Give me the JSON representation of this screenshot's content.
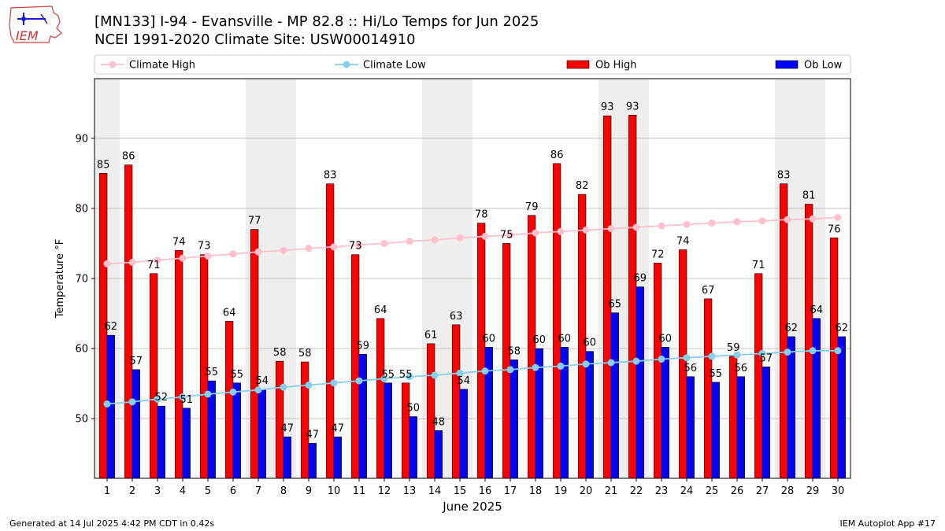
{
  "header": {
    "title_line1": "[MN133] I-94 - Evansville - MP 82.8  :: Hi/Lo Temps for Jun 2025",
    "title_line2": "NCEI 1991-2020 Climate Site: USW00014910",
    "logo_text": "IEM"
  },
  "footer": {
    "generated": "Generated at 14 Jul 2025 4:42 PM CDT in 0.42s",
    "app": "IEM Autoplot App #17"
  },
  "colors": {
    "ob_high": "#ff0000",
    "ob_low": "#0000ff",
    "climate_high": "#ffc0cb",
    "climate_low": "#87ceeb",
    "weekend_band": "#eeeeee",
    "grid": "#b0b0b0"
  },
  "chart_data": {
    "type": "bar",
    "title": "[MN133] I-94 - Evansville - MP 82.8  :: Hi/Lo Temps for Jun 2025",
    "xlabel": "June 2025",
    "ylabel": "Temperature °F",
    "ylim": [
      41.5,
      98.5
    ],
    "yticks": [
      50,
      60,
      70,
      80,
      90
    ],
    "grid": "y",
    "legend_placement": "top",
    "categories": [
      "1",
      "2",
      "3",
      "4",
      "5",
      "6",
      "7",
      "8",
      "9",
      "10",
      "11",
      "12",
      "13",
      "14",
      "15",
      "16",
      "17",
      "18",
      "19",
      "20",
      "21",
      "22",
      "23",
      "24",
      "25",
      "26",
      "27",
      "28",
      "29",
      "30"
    ],
    "shaded_days": [
      1,
      7,
      8,
      14,
      15,
      21,
      22,
      28,
      29
    ],
    "series": [
      {
        "name": "Ob High",
        "kind": "bar",
        "values": [
          85,
          86,
          71,
          74,
          73,
          64,
          77,
          58,
          58,
          83,
          73,
          64,
          55,
          61,
          63,
          78,
          75,
          79,
          86,
          82,
          93,
          93,
          72,
          74,
          67,
          59,
          71,
          83,
          81,
          76
        ],
        "plot_values": [
          85.0,
          86.2,
          70.7,
          74.0,
          73.4,
          63.9,
          77.0,
          58.2,
          58.1,
          83.5,
          73.4,
          64.3,
          55.1,
          60.7,
          63.4,
          77.9,
          75.0,
          79.0,
          86.4,
          82.0,
          93.2,
          93.3,
          72.2,
          74.1,
          67.1,
          58.9,
          70.7,
          83.5,
          80.6,
          75.8
        ]
      },
      {
        "name": "Ob Low",
        "kind": "bar",
        "values": [
          62,
          57,
          52,
          51,
          55,
          55,
          54,
          47,
          47,
          47,
          59,
          55,
          50,
          48,
          54,
          60,
          58,
          60,
          60,
          60,
          65,
          69,
          60,
          56,
          55,
          56,
          57,
          62,
          64,
          62
        ],
        "plot_values": [
          61.9,
          57.0,
          51.8,
          51.5,
          55.4,
          55.1,
          54.2,
          47.4,
          46.5,
          47.4,
          59.2,
          55.1,
          50.3,
          48.3,
          54.2,
          60.2,
          58.4,
          60.0,
          60.2,
          59.6,
          65.1,
          68.8,
          60.2,
          56.0,
          55.2,
          56.0,
          57.4,
          61.7,
          64.3,
          61.7
        ]
      },
      {
        "name": "Climate High",
        "kind": "line",
        "values": [
          72.1,
          72.3,
          72.6,
          72.9,
          73.2,
          73.5,
          73.8,
          74.0,
          74.3,
          74.5,
          74.8,
          75.0,
          75.3,
          75.5,
          75.8,
          76.0,
          76.2,
          76.5,
          76.7,
          76.9,
          77.1,
          77.3,
          77.5,
          77.7,
          77.9,
          78.1,
          78.2,
          78.4,
          78.5,
          78.7
        ]
      },
      {
        "name": "Climate Low",
        "kind": "line",
        "values": [
          52.1,
          52.4,
          52.8,
          53.1,
          53.5,
          53.8,
          54.1,
          54.5,
          54.8,
          55.1,
          55.4,
          55.7,
          56.0,
          56.2,
          56.5,
          56.8,
          57.0,
          57.3,
          57.5,
          57.8,
          58.0,
          58.2,
          58.5,
          58.7,
          58.9,
          59.1,
          59.3,
          59.5,
          59.7,
          59.7
        ]
      }
    ]
  }
}
